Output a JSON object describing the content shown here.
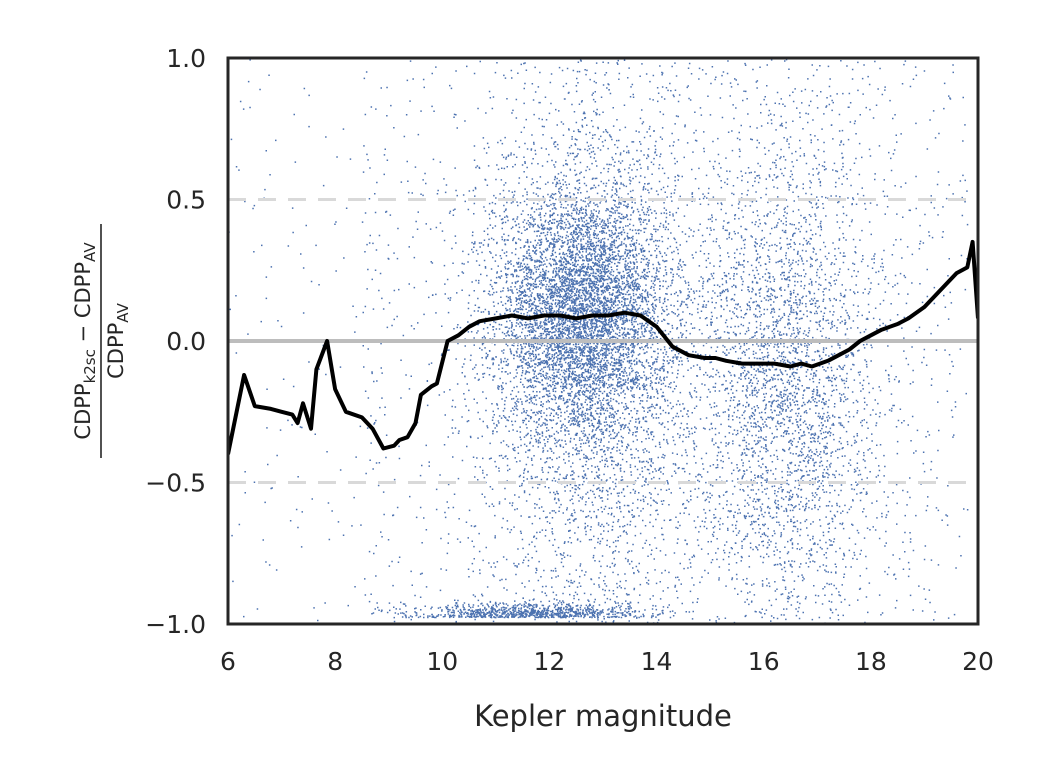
{
  "chart_data": {
    "type": "scatter",
    "title": "",
    "xlabel": "Kepler magnitude",
    "ylabel": {
      "numerator": {
        "a": "CDPP",
        "a_sub": "k2sc",
        "op": "−",
        "b": "CDPP",
        "b_sub": "AV"
      },
      "denominator": {
        "c": "CDPP",
        "c_sub": "AV"
      }
    },
    "xlim": [
      6,
      20
    ],
    "ylim": [
      -1.0,
      1.0
    ],
    "xticks": [
      6,
      8,
      10,
      12,
      14,
      16,
      18,
      20
    ],
    "xtick_labels": [
      "6",
      "8",
      "10",
      "12",
      "14",
      "16",
      "18",
      "20"
    ],
    "yticks": [
      1.0,
      0.5,
      0.0,
      -0.5,
      -1.0
    ],
    "ytick_labels": [
      "1.0",
      "0.5",
      "0.0",
      "−0.5",
      "−1.0"
    ],
    "grid": false,
    "reference_lines": [
      {
        "y": 0.0,
        "style": "solid",
        "color": "#bdbdbd"
      },
      {
        "y": 0.5,
        "style": "dashed",
        "color": "#d9d9d9"
      },
      {
        "y": -0.5,
        "style": "dashed",
        "color": "#d9d9d9"
      }
    ],
    "scatter_color": "#4c72b0",
    "scatter_note": "dense cloud of individual targets, concentrated near magnitude 12-13 and 16-17",
    "series": [
      {
        "type": "line",
        "color": "#000000",
        "x": [
          6.0,
          6.3,
          6.5,
          6.8,
          7.0,
          7.2,
          7.3,
          7.4,
          7.55,
          7.65,
          7.85,
          8.0,
          8.2,
          8.5,
          8.7,
          8.9,
          9.1,
          9.2,
          9.35,
          9.5,
          9.6,
          9.8,
          9.9,
          10.1,
          10.3,
          10.5,
          10.7,
          11.0,
          11.3,
          11.6,
          11.9,
          12.2,
          12.5,
          12.8,
          13.1,
          13.4,
          13.7,
          14.0,
          14.3,
          14.6,
          14.9,
          15.1,
          15.3,
          15.6,
          15.9,
          16.2,
          16.5,
          16.7,
          16.9,
          17.2,
          17.4,
          17.6,
          17.8,
          18.0,
          18.2,
          18.5,
          18.7,
          19.0,
          19.2,
          19.4,
          19.6,
          19.8,
          19.9,
          20.0
        ],
        "y": [
          -0.4,
          -0.12,
          -0.23,
          -0.24,
          -0.25,
          -0.26,
          -0.29,
          -0.22,
          -0.31,
          -0.1,
          0.0,
          -0.17,
          -0.25,
          -0.27,
          -0.31,
          -0.38,
          -0.37,
          -0.35,
          -0.34,
          -0.29,
          -0.19,
          -0.16,
          -0.15,
          0.0,
          0.02,
          0.05,
          0.07,
          0.08,
          0.09,
          0.08,
          0.09,
          0.09,
          0.08,
          0.09,
          0.09,
          0.1,
          0.09,
          0.05,
          -0.02,
          -0.05,
          -0.06,
          -0.06,
          -0.07,
          -0.08,
          -0.08,
          -0.08,
          -0.09,
          -0.08,
          -0.09,
          -0.07,
          -0.05,
          -0.03,
          0.0,
          0.02,
          0.04,
          0.06,
          0.08,
          0.12,
          0.16,
          0.2,
          0.24,
          0.26,
          0.35,
          0.08
        ]
      }
    ]
  }
}
